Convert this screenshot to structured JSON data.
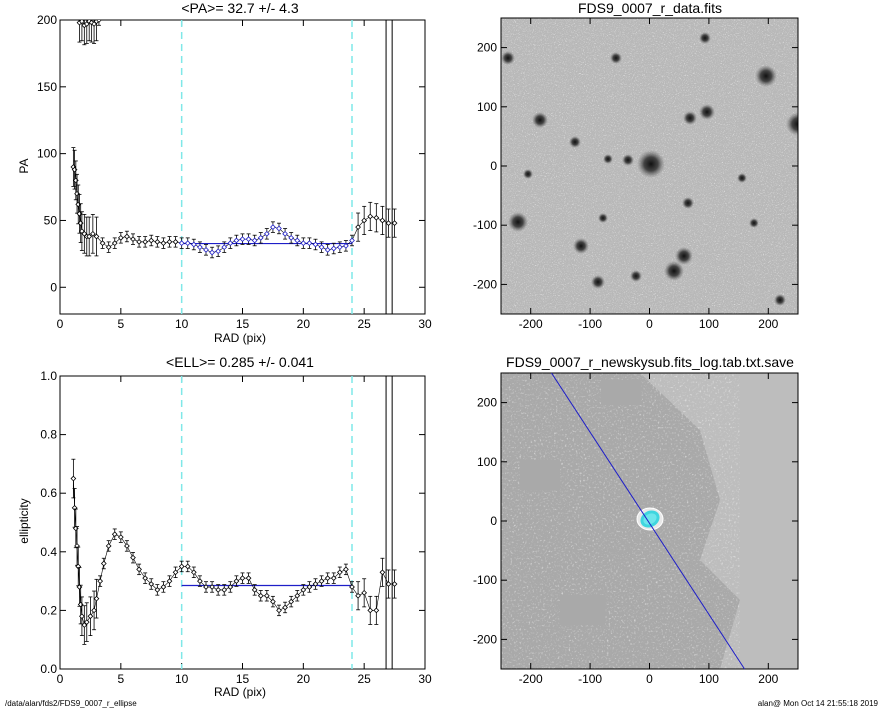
{
  "footer": {
    "path": "/data/alan/fds2/FDS9_0007_r_ellipse",
    "user_time": "alan@  Mon Oct 14 21:55:18 2019"
  },
  "colors": {
    "trend_line": "#1e1ec8",
    "guide_line": "#7fe8e8",
    "marker_blue": "#1e1ec8",
    "ellipse_cyan": "#3fd6df"
  },
  "chart_data": [
    {
      "type": "scatter",
      "title": "<PA>=  32.7 +/-   4.3",
      "xlabel": "RAD (pix)",
      "ylabel": "PA",
      "xlim": [
        0,
        30
      ],
      "ylim": [
        -20,
        200
      ],
      "xticks": [
        0,
        5,
        10,
        15,
        20,
        25,
        30
      ],
      "yticks": [
        0,
        50,
        100,
        150,
        200
      ],
      "mean_line": {
        "value": 32.7,
        "x_range": [
          10,
          24
        ]
      },
      "guide_lines_x": [
        10,
        24
      ],
      "cutoff_lines_x": [
        26.8,
        27.3
      ],
      "series": [
        {
          "values": [
            [
              1.1,
              90
            ],
            [
              1.2,
              88
            ],
            [
              1.3,
              80
            ],
            [
              1.4,
              70
            ],
            [
              1.5,
              62
            ],
            [
              1.6,
              55
            ],
            [
              1.7,
              48
            ],
            [
              1.8,
              42
            ],
            [
              2.0,
              40
            ],
            [
              2.2,
              38
            ],
            [
              2.4,
              38
            ],
            [
              2.7,
              40
            ],
            [
              3.0,
              38
            ],
            [
              3.5,
              33
            ],
            [
              4.0,
              30
            ],
            [
              4.5,
              33
            ],
            [
              5.0,
              37
            ],
            [
              5.5,
              38
            ],
            [
              6.0,
              36
            ],
            [
              6.5,
              34
            ],
            [
              7.0,
              34
            ],
            [
              7.5,
              35
            ],
            [
              8.0,
              34
            ],
            [
              8.5,
              33
            ],
            [
              9.0,
              34
            ],
            [
              9.5,
              34
            ],
            [
              10,
              33
            ],
            [
              10.5,
              33
            ],
            [
              11,
              32
            ],
            [
              11.5,
              30
            ],
            [
              12,
              28
            ],
            [
              12.5,
              26
            ],
            [
              13,
              27
            ],
            [
              13.5,
              30
            ],
            [
              14,
              33
            ],
            [
              14.5,
              35
            ],
            [
              15,
              36
            ],
            [
              15.5,
              36
            ],
            [
              16,
              35
            ],
            [
              16.5,
              37
            ],
            [
              17,
              40
            ],
            [
              17.5,
              45
            ],
            [
              18,
              44
            ],
            [
              18.5,
              40
            ],
            [
              19,
              37
            ],
            [
              19.5,
              35
            ],
            [
              20,
              33
            ],
            [
              20.5,
              33
            ],
            [
              21,
              32
            ],
            [
              21.5,
              30
            ],
            [
              22,
              28
            ],
            [
              22.5,
              29
            ],
            [
              23,
              30
            ],
            [
              23.5,
              31
            ],
            [
              24,
              35
            ],
            [
              24.5,
              45
            ],
            [
              25,
              50
            ],
            [
              25.5,
              53
            ],
            [
              26,
              52
            ],
            [
              26.5,
              50
            ],
            [
              27,
              48
            ],
            [
              27.5,
              48
            ]
          ]
        },
        {
          "values": [
            [
              1.6,
              198
            ],
            [
              1.8,
              199
            ],
            [
              2.0,
              196
            ],
            [
              2.2,
              197
            ],
            [
              2.4,
              199
            ],
            [
              2.6,
              198
            ],
            [
              2.8,
              197
            ],
            [
              3.0,
              199
            ],
            [
              3.2,
              200
            ]
          ]
        }
      ]
    },
    {
      "type": "image",
      "title": "FDS9_0007_r_data.fits",
      "xlim": [
        -250,
        250
      ],
      "ylim": [
        -250,
        250
      ],
      "xticks": [
        -200,
        -100,
        0,
        100,
        200
      ],
      "yticks": [
        -200,
        -100,
        0,
        100,
        200
      ]
    },
    {
      "type": "scatter",
      "title": "<ELL>= 0.285 +/-  0.041",
      "xlabel": "RAD (pix)",
      "ylabel": "ellipticity",
      "xlim": [
        0,
        30
      ],
      "ylim": [
        0,
        1
      ],
      "xticks": [
        0,
        5,
        10,
        15,
        20,
        25,
        30
      ],
      "yticks": [
        "0.0",
        "0.2",
        "0.4",
        "0.6",
        "0.8",
        "1.0"
      ],
      "mean_line": {
        "value": 0.285,
        "x_range": [
          10,
          24
        ]
      },
      "guide_lines_x": [
        10,
        24
      ],
      "cutoff_lines_x": [
        26.8,
        27.3
      ],
      "series": [
        {
          "values": [
            [
              1.1,
              0.65
            ],
            [
              1.2,
              0.55
            ],
            [
              1.3,
              0.48
            ],
            [
              1.4,
              0.42
            ],
            [
              1.5,
              0.35
            ],
            [
              1.6,
              0.28
            ],
            [
              1.7,
              0.22
            ],
            [
              1.8,
              0.18
            ],
            [
              2.0,
              0.15
            ],
            [
              2.2,
              0.16
            ],
            [
              2.5,
              0.18
            ],
            [
              2.8,
              0.2
            ],
            [
              3.0,
              0.24
            ],
            [
              3.3,
              0.3
            ],
            [
              3.6,
              0.36
            ],
            [
              4.0,
              0.42
            ],
            [
              4.5,
              0.46
            ],
            [
              5.0,
              0.45
            ],
            [
              5.5,
              0.42
            ],
            [
              6.0,
              0.38
            ],
            [
              6.5,
              0.34
            ],
            [
              7.0,
              0.31
            ],
            [
              7.5,
              0.29
            ],
            [
              8.0,
              0.27
            ],
            [
              8.5,
              0.28
            ],
            [
              9.0,
              0.3
            ],
            [
              9.5,
              0.33
            ],
            [
              10,
              0.35
            ],
            [
              10.5,
              0.35
            ],
            [
              11,
              0.33
            ],
            [
              11.5,
              0.3
            ],
            [
              12,
              0.28
            ],
            [
              12.5,
              0.28
            ],
            [
              13,
              0.27
            ],
            [
              13.5,
              0.27
            ],
            [
              14,
              0.28
            ],
            [
              14.5,
              0.3
            ],
            [
              15,
              0.31
            ],
            [
              15.5,
              0.31
            ],
            [
              16,
              0.27
            ],
            [
              16.5,
              0.25
            ],
            [
              17,
              0.25
            ],
            [
              17.5,
              0.23
            ],
            [
              18,
              0.2
            ],
            [
              18.5,
              0.21
            ],
            [
              19,
              0.23
            ],
            [
              19.5,
              0.25
            ],
            [
              20,
              0.27
            ],
            [
              20.5,
              0.28
            ],
            [
              21,
              0.29
            ],
            [
              21.5,
              0.3
            ],
            [
              22,
              0.31
            ],
            [
              22.5,
              0.31
            ],
            [
              23,
              0.33
            ],
            [
              23.5,
              0.34
            ],
            [
              24,
              0.28
            ],
            [
              24.5,
              0.25
            ],
            [
              25,
              0.26
            ],
            [
              25.5,
              0.2
            ],
            [
              26,
              0.2
            ],
            [
              26.5,
              0.33
            ],
            [
              27,
              0.29
            ],
            [
              27.5,
              0.29
            ]
          ]
        }
      ]
    },
    {
      "type": "image",
      "title": "FDS9_0007_r_newskysub.fits_log.tab.txt.save",
      "xlim": [
        -250,
        250
      ],
      "ylim": [
        -250,
        250
      ],
      "xticks": [
        -200,
        -100,
        0,
        100,
        200
      ],
      "yticks": [
        -200,
        -100,
        0,
        100,
        200
      ],
      "overlay_line": {
        "from": [
          -165,
          250
        ],
        "to": [
          160,
          -250
        ]
      }
    }
  ]
}
